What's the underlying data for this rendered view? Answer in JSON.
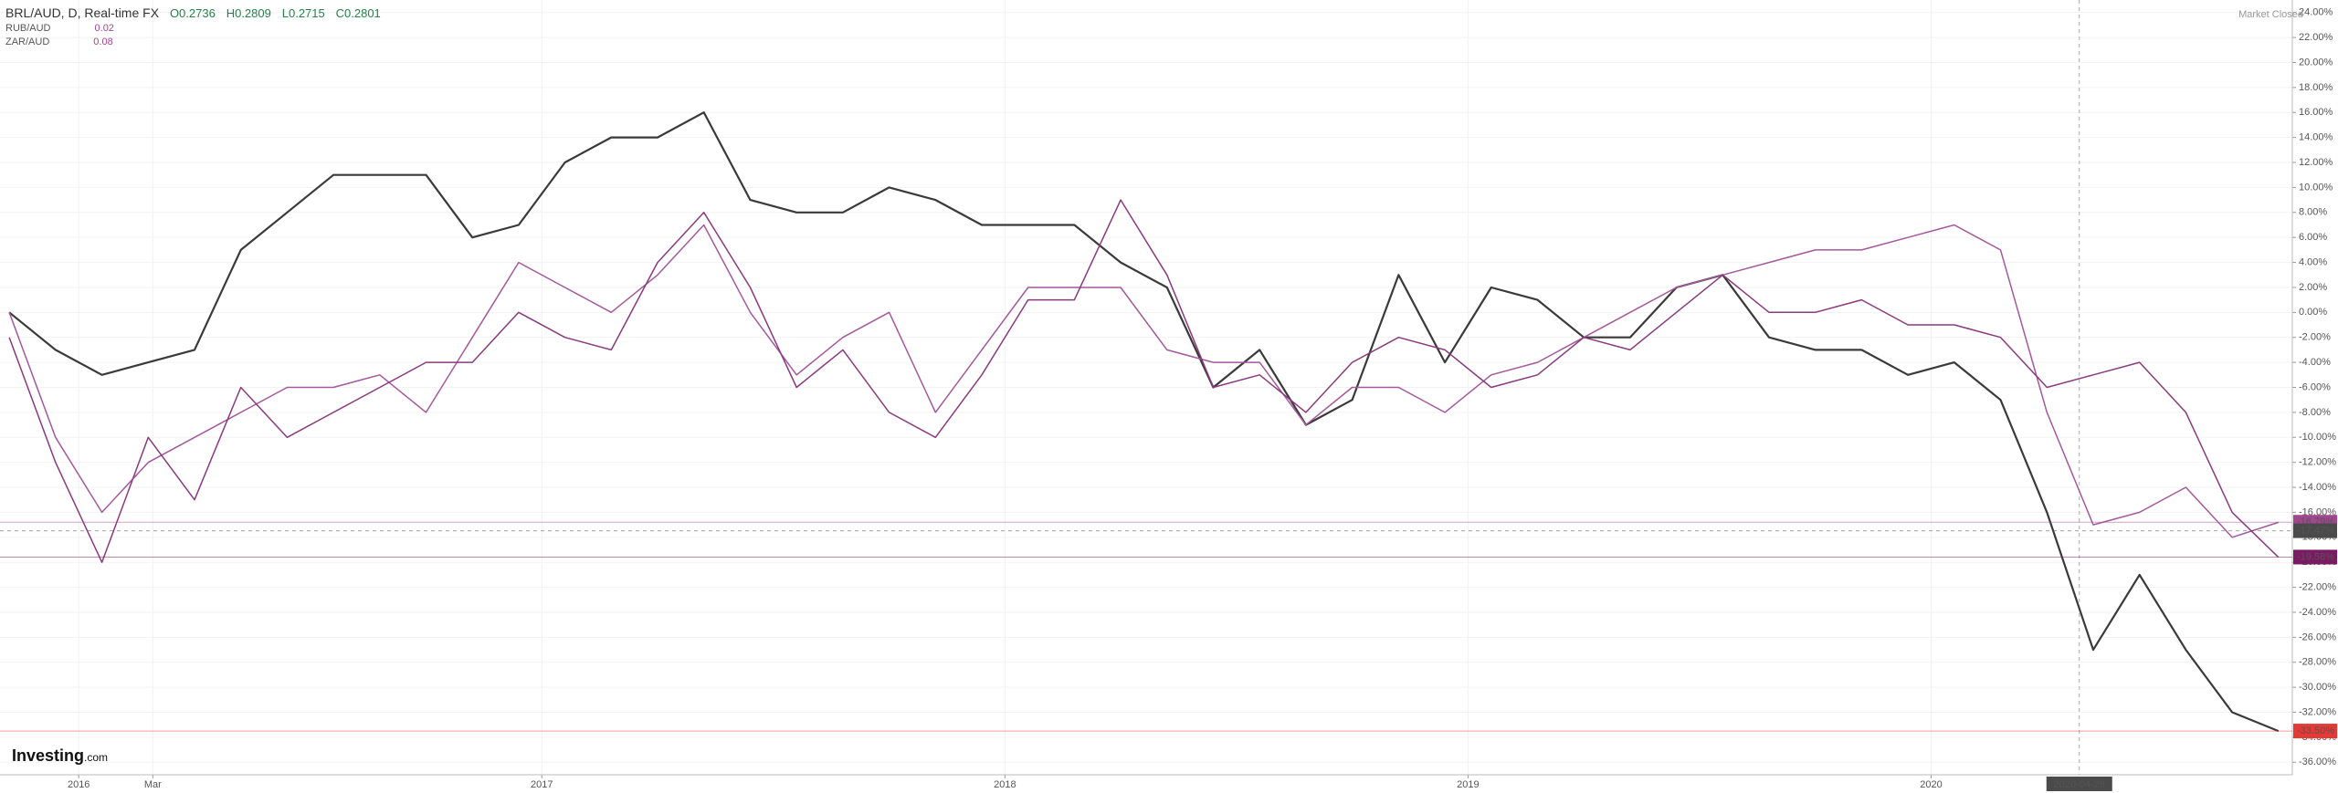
{
  "chart_data": {
    "type": "line",
    "title": "BRL/AUD, D, Real-time FX",
    "ohlc": [
      "O0.2736",
      "H0.2809",
      "L0.2715",
      "C0.2801"
    ],
    "status": "Market Closed",
    "watermark": [
      "Investing",
      ".com"
    ],
    "x": [
      2015.85,
      2015.95,
      2016.05,
      2016.15,
      2016.25,
      2016.35,
      2016.45,
      2016.55,
      2016.65,
      2016.75,
      2016.85,
      2016.95,
      2017.05,
      2017.15,
      2017.25,
      2017.35,
      2017.45,
      2017.55,
      2017.65,
      2017.75,
      2017.85,
      2017.95,
      2018.05,
      2018.15,
      2018.25,
      2018.35,
      2018.45,
      2018.55,
      2018.65,
      2018.75,
      2018.85,
      2018.95,
      2019.05,
      2019.15,
      2019.25,
      2019.35,
      2019.45,
      2019.55,
      2019.65,
      2019.75,
      2019.85,
      2019.95,
      2020.05,
      2020.15,
      2020.25,
      2020.35,
      2020.45,
      2020.55,
      2020.65,
      2020.75
    ],
    "series": [
      {
        "name": "BRL/AUD",
        "color": "#3a3a3a",
        "values": [
          0,
          -3,
          -5,
          -4,
          -3,
          5,
          8,
          11,
          11,
          11,
          6,
          7,
          12,
          14,
          14,
          16,
          9,
          8,
          8,
          10,
          9,
          7,
          7,
          7,
          4,
          2,
          -6,
          -3,
          -9,
          -7,
          3,
          -4,
          2,
          1,
          -2,
          -2,
          2,
          3,
          -2,
          -3,
          -3,
          -5,
          -4,
          -7,
          -16,
          -27,
          -21,
          -27,
          -32,
          -33.5
        ]
      },
      {
        "name": "RUB/AUD",
        "color": "#a4589c",
        "legend_value": "0.02",
        "values": [
          0,
          -10,
          -16,
          -12,
          -10,
          -8,
          -6,
          -6,
          -5,
          -8,
          -2,
          4,
          2,
          0,
          3,
          7,
          0,
          -5,
          -2,
          0,
          -8,
          -3,
          2,
          2,
          2,
          -3,
          -4,
          -4,
          -9,
          -6,
          -6,
          -8,
          -5,
          -4,
          -2,
          0,
          2,
          3,
          4,
          5,
          5,
          6,
          7,
          5,
          -8,
          -17,
          -16,
          -14,
          -18,
          -16.8
        ]
      },
      {
        "name": "ZAR/AUD",
        "color": "#8a3a7e",
        "legend_value": "0.08",
        "values": [
          -2,
          -12,
          -20,
          -10,
          -15,
          -6,
          -10,
          -8,
          -6,
          -4,
          -4,
          0,
          -2,
          -3,
          4,
          8,
          2,
          -6,
          -3,
          -8,
          -10,
          -5,
          1,
          1,
          9,
          3,
          -6,
          -5,
          -8,
          -4,
          -2,
          -3,
          -6,
          -5,
          -2,
          -3,
          0,
          3,
          0,
          0,
          1,
          -1,
          -1,
          -2,
          -6,
          -5,
          -4,
          -8,
          -16,
          -19.6
        ]
      }
    ],
    "xlim": [
      2015.83,
      2020.78
    ],
    "xticks": [
      2016,
      {
        "value": 2016.16,
        "label": "Mar"
      },
      2017,
      2018,
      2019,
      2020
    ],
    "crosshair_x": {
      "value": 2020.32,
      "label": "2020-04-28"
    },
    "ylim": [
      -37,
      25
    ],
    "yticks": [
      {
        "value": 24,
        "label": "24.00%"
      },
      {
        "value": 22,
        "label": "22.00%"
      },
      {
        "value": 20,
        "label": "20.00%"
      },
      {
        "value": 18,
        "label": "18.00%"
      },
      {
        "value": 16,
        "label": "16.00%"
      },
      {
        "value": 14,
        "label": "14.00%"
      },
      {
        "value": 12,
        "label": "12.00%"
      },
      {
        "value": 10,
        "label": "10.00%"
      },
      {
        "value": 8,
        "label": "8.00%"
      },
      {
        "value": 6,
        "label": "6.00%"
      },
      {
        "value": 4,
        "label": "4.00%"
      },
      {
        "value": 2,
        "label": "2.00%"
      },
      {
        "value": 0,
        "label": "0.00%"
      },
      {
        "value": -2,
        "label": "-2.00%"
      },
      {
        "value": -4,
        "label": "-4.00%"
      },
      {
        "value": -6,
        "label": "-6.00%"
      },
      {
        "value": -8,
        "label": "-8.00%"
      },
      {
        "value": -10,
        "label": "-10.00%"
      },
      {
        "value": -12,
        "label": "-12.00%"
      },
      {
        "value": -14,
        "label": "-14.00%"
      },
      {
        "value": -16,
        "label": "-16.00%"
      },
      {
        "value": -18,
        "label": "-18.00%"
      },
      {
        "value": -20,
        "label": "-20.00%"
      },
      {
        "value": -22,
        "label": "-22.00%"
      },
      {
        "value": -24,
        "label": "-24.00%"
      },
      {
        "value": -26,
        "label": "-26.00%"
      },
      {
        "value": -28,
        "label": "-28.00%"
      },
      {
        "value": -30,
        "label": "-30.00%"
      },
      {
        "value": -32,
        "label": "-32.00%"
      },
      {
        "value": -34,
        "label": "-34.00%"
      },
      {
        "value": -36,
        "label": "-36.00%"
      }
    ],
    "grid": true,
    "tags": [
      {
        "value": -16.79,
        "label": "-16.79%",
        "color": "#a0478f"
      },
      {
        "value": -17.47,
        "label": "-17.47%",
        "color": "#4a4a4a"
      },
      {
        "value": -19.58,
        "label": "-19.58%",
        "color": "#7a1a62"
      },
      {
        "value": -33.5,
        "label": "-33.50%",
        "color": "#e53935"
      }
    ]
  }
}
